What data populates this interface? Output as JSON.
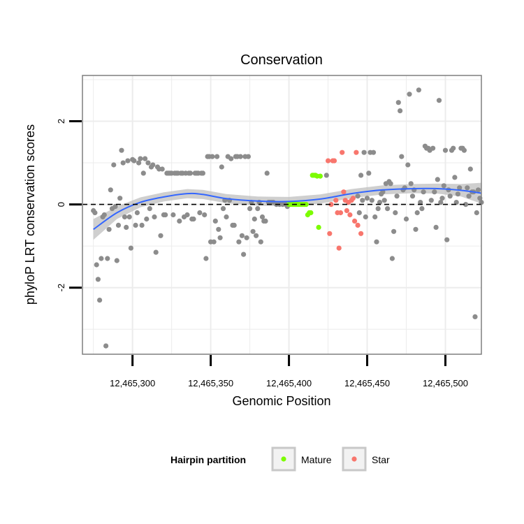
{
  "chart_data": {
    "type": "scatter",
    "title": "Conservation",
    "xlabel": "Genomic Position",
    "ylabel": "phyloP LRT conservation scores",
    "xlim": [
      12465268,
      12465523
    ],
    "ylim": [
      -3.6,
      3.1
    ],
    "x_ticks": [
      12465300,
      12465350,
      12465400,
      12465450,
      12465500
    ],
    "x_tick_labels": [
      "12,465,300",
      "12,465,350",
      "12,465,400",
      "12,465,450",
      "12,465,500"
    ],
    "y_ticks": [
      -2,
      0,
      2
    ],
    "y_tick_labels": [
      "-2",
      "0",
      "2"
    ],
    "reference_line_y": 0,
    "colors": {
      "Other": "#8c8c8c",
      "Mature": "#7cfc00",
      "Star": "#f8766d",
      "smooth": "#3366ff",
      "ribbon": "#bfbfbf",
      "panel_border": "#7f7f7f",
      "grid": "#ececec"
    },
    "legend": {
      "title": "Hairpin partition",
      "entries": [
        {
          "label": "Mature",
          "group": "Mature"
        },
        {
          "label": "Star",
          "group": "Star"
        }
      ]
    },
    "series": [
      {
        "name": "Other",
        "points": [
          [
            12465275,
            -0.15
          ],
          [
            12465276,
            -0.2
          ],
          [
            12465277,
            -1.45
          ],
          [
            12465278,
            -1.8
          ],
          [
            12465279,
            -2.3
          ],
          [
            12465280,
            -1.3
          ],
          [
            12465281,
            -0.3
          ],
          [
            12465282,
            -0.25
          ],
          [
            12465283,
            -3.4
          ],
          [
            12465284,
            -1.3
          ],
          [
            12465285,
            -0.6
          ],
          [
            12465286,
            0.35
          ],
          [
            12465287,
            -0.1
          ],
          [
            12465288,
            0.95
          ],
          [
            12465289,
            -0.05
          ],
          [
            12465290,
            -1.35
          ],
          [
            12465291,
            -0.5
          ],
          [
            12465292,
            0.15
          ],
          [
            12465293,
            1.3
          ],
          [
            12465294,
            1.0
          ],
          [
            12465295,
            -0.3
          ],
          [
            12465296,
            -0.55
          ],
          [
            12465297,
            1.05
          ],
          [
            12465298,
            -0.3
          ],
          [
            12465299,
            -1.05
          ],
          [
            12465300,
            1.08
          ],
          [
            12465301,
            1.05
          ],
          [
            12465302,
            -0.5
          ],
          [
            12465303,
            -0.2
          ],
          [
            12465304,
            1.0
          ],
          [
            12465305,
            1.1
          ],
          [
            12465306,
            -0.5
          ],
          [
            12465307,
            0.75
          ],
          [
            12465308,
            1.1
          ],
          [
            12465309,
            -0.35
          ],
          [
            12465310,
            1.0
          ],
          [
            12465311,
            -0.1
          ],
          [
            12465312,
            0.9
          ],
          [
            12465313,
            0.95
          ],
          [
            12465314,
            -0.3
          ],
          [
            12465315,
            -1.15
          ],
          [
            12465316,
            0.9
          ],
          [
            12465317,
            0.85
          ],
          [
            12465318,
            -0.75
          ],
          [
            12465319,
            0.85
          ],
          [
            12465320,
            -0.25
          ],
          [
            12465321,
            -0.25
          ],
          [
            12465322,
            0.75
          ],
          [
            12465323,
            0.75
          ],
          [
            12465324,
            0.75
          ],
          [
            12465325,
            0.75
          ],
          [
            12465326,
            -0.25
          ],
          [
            12465327,
            0.75
          ],
          [
            12465328,
            0.75
          ],
          [
            12465329,
            0.75
          ],
          [
            12465330,
            -0.4
          ],
          [
            12465331,
            0.75
          ],
          [
            12465332,
            0.75
          ],
          [
            12465333,
            -0.3
          ],
          [
            12465334,
            0.75
          ],
          [
            12465335,
            -0.25
          ],
          [
            12465336,
            0.75
          ],
          [
            12465337,
            0.75
          ],
          [
            12465338,
            -0.35
          ],
          [
            12465339,
            -0.35
          ],
          [
            12465340,
            0.75
          ],
          [
            12465341,
            0.75
          ],
          [
            12465342,
            0.75
          ],
          [
            12465343,
            -0.2
          ],
          [
            12465344,
            0.75
          ],
          [
            12465345,
            0.75
          ],
          [
            12465346,
            -0.25
          ],
          [
            12465347,
            -1.3
          ],
          [
            12465348,
            1.15
          ],
          [
            12465349,
            1.15
          ],
          [
            12465350,
            -0.9
          ],
          [
            12465351,
            1.15
          ],
          [
            12465352,
            -0.9
          ],
          [
            12465353,
            -0.4
          ],
          [
            12465354,
            1.15
          ],
          [
            12465355,
            -0.6
          ],
          [
            12465356,
            -0.8
          ],
          [
            12465357,
            0.9
          ],
          [
            12465358,
            -0.1
          ],
          [
            12465359,
            0.1
          ],
          [
            12465360,
            -0.3
          ],
          [
            12465361,
            1.15
          ],
          [
            12465362,
            0.1
          ],
          [
            12465363,
            1.1
          ],
          [
            12465364,
            -0.5
          ],
          [
            12465365,
            -0.5
          ],
          [
            12465366,
            1.15
          ],
          [
            12465367,
            1.15
          ],
          [
            12465368,
            -0.9
          ],
          [
            12465369,
            1.15
          ],
          [
            12465370,
            -0.75
          ],
          [
            12465371,
            -1.2
          ],
          [
            12465372,
            1.15
          ],
          [
            12465373,
            -0.8
          ],
          [
            12465374,
            1.15
          ],
          [
            12465375,
            -0.1
          ],
          [
            12465376,
            0.05
          ],
          [
            12465377,
            -0.65
          ],
          [
            12465378,
            -0.35
          ],
          [
            12465379,
            -0.75
          ],
          [
            12465380,
            -0.1
          ],
          [
            12465381,
            0.05
          ],
          [
            12465382,
            -0.9
          ],
          [
            12465383,
            -0.3
          ],
          [
            12465384,
            -0.4
          ],
          [
            12465385,
            -0.4
          ],
          [
            12465386,
            0.75
          ],
          [
            12465387,
            0.05
          ],
          [
            12465388,
            0.05
          ],
          [
            12465389,
            0.05
          ],
          [
            12465390,
            0.05
          ],
          [
            12465392,
            0.0
          ],
          [
            12465394,
            0.0
          ],
          [
            12465396,
            0.0
          ],
          [
            12465398,
            0.0
          ],
          [
            12465399,
            -0.05
          ],
          [
            12465424,
            0.7
          ],
          [
            12465444,
            0.2
          ],
          [
            12465445,
            -0.2
          ],
          [
            12465446,
            0.7
          ],
          [
            12465447,
            0.1
          ],
          [
            12465448,
            1.25
          ],
          [
            12465449,
            -0.3
          ],
          [
            12465450,
            0.15
          ],
          [
            12465451,
            0.75
          ],
          [
            12465452,
            1.25
          ],
          [
            12465453,
            0.1
          ],
          [
            12465454,
            1.25
          ],
          [
            12465455,
            -0.3
          ],
          [
            12465456,
            -0.9
          ],
          [
            12465457,
            -0.1
          ],
          [
            12465458,
            0.05
          ],
          [
            12465459,
            0.25
          ],
          [
            12465460,
            0.3
          ],
          [
            12465461,
            0.1
          ],
          [
            12465462,
            0.5
          ],
          [
            12465463,
            -0.1
          ],
          [
            12465464,
            0.55
          ],
          [
            12465465,
            0.5
          ],
          [
            12465466,
            -1.3
          ],
          [
            12465467,
            -0.65
          ],
          [
            12465468,
            -0.2
          ],
          [
            12465469,
            0.2
          ],
          [
            12465470,
            2.45
          ],
          [
            12465471,
            2.25
          ],
          [
            12465472,
            1.15
          ],
          [
            12465473,
            0.35
          ],
          [
            12465474,
            0.4
          ],
          [
            12465475,
            -0.35
          ],
          [
            12465476,
            0.95
          ],
          [
            12465477,
            2.65
          ],
          [
            12465478,
            0.5
          ],
          [
            12465479,
            0.2
          ],
          [
            12465480,
            0.35
          ],
          [
            12465481,
            -0.6
          ],
          [
            12465482,
            -0.2
          ],
          [
            12465483,
            2.75
          ],
          [
            12465484,
            0.05
          ],
          [
            12465485,
            -0.1
          ],
          [
            12465486,
            0.3
          ],
          [
            12465487,
            1.4
          ],
          [
            12465488,
            1.35
          ],
          [
            12465489,
            1.35
          ],
          [
            12465490,
            1.3
          ],
          [
            12465491,
            0.1
          ],
          [
            12465492,
            1.35
          ],
          [
            12465493,
            0.3
          ],
          [
            12465494,
            -0.55
          ],
          [
            12465495,
            0.6
          ],
          [
            12465496,
            2.5
          ],
          [
            12465497,
            0.05
          ],
          [
            12465498,
            0.15
          ],
          [
            12465499,
            0.45
          ],
          [
            12465500,
            1.3
          ],
          [
            12465501,
            -0.85
          ],
          [
            12465502,
            0.35
          ],
          [
            12465503,
            0.2
          ],
          [
            12465504,
            1.3
          ],
          [
            12465505,
            1.35
          ],
          [
            12465506,
            0.65
          ],
          [
            12465507,
            0.05
          ],
          [
            12465508,
            0.25
          ],
          [
            12465509,
            0.4
          ],
          [
            12465510,
            1.35
          ],
          [
            12465511,
            1.35
          ],
          [
            12465512,
            1.3
          ],
          [
            12465513,
            0.0
          ],
          [
            12465514,
            0.4
          ],
          [
            12465515,
            0.2
          ],
          [
            12465516,
            0.85
          ],
          [
            12465517,
            0.3
          ],
          [
            12465518,
            0.3
          ],
          [
            12465519,
            -2.7
          ],
          [
            12465520,
            -0.2
          ],
          [
            12465521,
            0.35
          ],
          [
            12465522,
            0.15
          ],
          [
            12465523,
            0.05
          ]
        ]
      },
      {
        "name": "Mature",
        "points": [
          [
            12465400,
            0.0
          ],
          [
            12465401,
            0.0
          ],
          [
            12465402,
            0.0
          ],
          [
            12465403,
            0.0
          ],
          [
            12465404,
            0.0
          ],
          [
            12465405,
            0.0
          ],
          [
            12465406,
            0.0
          ],
          [
            12465407,
            0.0
          ],
          [
            12465408,
            0.0
          ],
          [
            12465409,
            0.0
          ],
          [
            12465410,
            0.0
          ],
          [
            12465411,
            0.0
          ],
          [
            12465412,
            -0.25
          ],
          [
            12465413,
            -0.2
          ],
          [
            12465414,
            -0.2
          ],
          [
            12465415,
            0.7
          ],
          [
            12465416,
            0.7
          ],
          [
            12465417,
            0.7
          ],
          [
            12465418,
            0.68
          ],
          [
            12465419,
            -0.55
          ],
          [
            12465420,
            0.68
          ]
        ]
      },
      {
        "name": "Star",
        "points": [
          [
            12465425,
            1.05
          ],
          [
            12465426,
            -0.7
          ],
          [
            12465427,
            0.0
          ],
          [
            12465428,
            1.05
          ],
          [
            12465429,
            1.05
          ],
          [
            12465430,
            0.1
          ],
          [
            12465431,
            -0.2
          ],
          [
            12465432,
            -1.05
          ],
          [
            12465433,
            -0.2
          ],
          [
            12465434,
            1.25
          ],
          [
            12465435,
            0.3
          ],
          [
            12465436,
            0.1
          ],
          [
            12465437,
            -0.15
          ],
          [
            12465438,
            0.05
          ],
          [
            12465439,
            -0.25
          ],
          [
            12465440,
            0.1
          ],
          [
            12465441,
            0.15
          ],
          [
            12465442,
            -0.4
          ],
          [
            12465443,
            1.25
          ],
          [
            12465444,
            -0.5
          ],
          [
            12465446,
            -0.7
          ]
        ]
      }
    ],
    "smooth": {
      "x": [
        12465275,
        12465290,
        12465305,
        12465320,
        12465335,
        12465345,
        12465360,
        12465380,
        12465400,
        12465420,
        12465440,
        12465460,
        12465480,
        12465495,
        12465510,
        12465523
      ],
      "y": [
        -0.6,
        -0.2,
        0.05,
        0.18,
        0.26,
        0.24,
        0.14,
        0.08,
        0.07,
        0.13,
        0.26,
        0.35,
        0.38,
        0.38,
        0.34,
        0.27
      ],
      "ci_half": [
        0.25,
        0.15,
        0.12,
        0.11,
        0.11,
        0.11,
        0.11,
        0.11,
        0.11,
        0.11,
        0.11,
        0.11,
        0.11,
        0.12,
        0.15,
        0.25
      ]
    }
  }
}
